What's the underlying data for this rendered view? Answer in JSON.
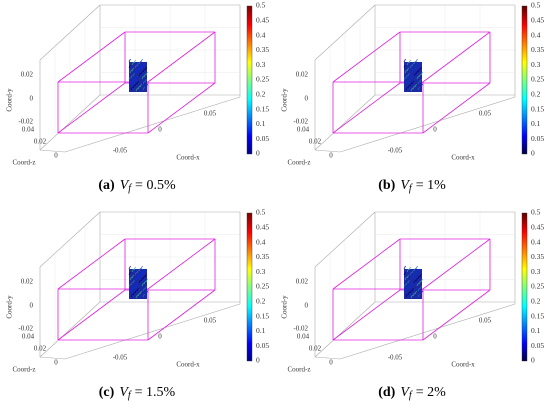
{
  "axes": {
    "x_label": "Coord-x",
    "y_label": "Coord-y",
    "z_label": "Coord-z",
    "x_ticks": [
      -0.05,
      0,
      0.05
    ],
    "y_ticks": [
      0.02,
      0,
      -0.02
    ],
    "z_ticks": [
      0.04,
      0.02,
      0
    ]
  },
  "colorbar": {
    "ticks": [
      0,
      0.05,
      0.1,
      0.15,
      0.2,
      0.25,
      0.3,
      0.35,
      0.4,
      0.45,
      0.5
    ]
  },
  "panels": [
    {
      "label": "(a)",
      "symbol": "V",
      "subscript": "f",
      "expression": "= 0.5%"
    },
    {
      "label": "(b)",
      "symbol": "V",
      "subscript": "f",
      "expression": "= 1%"
    },
    {
      "label": "(c)",
      "symbol": "V",
      "subscript": "f",
      "expression": "= 1.5%"
    },
    {
      "label": "(d)",
      "symbol": "V",
      "subscript": "f",
      "expression": "= 2%"
    }
  ]
}
